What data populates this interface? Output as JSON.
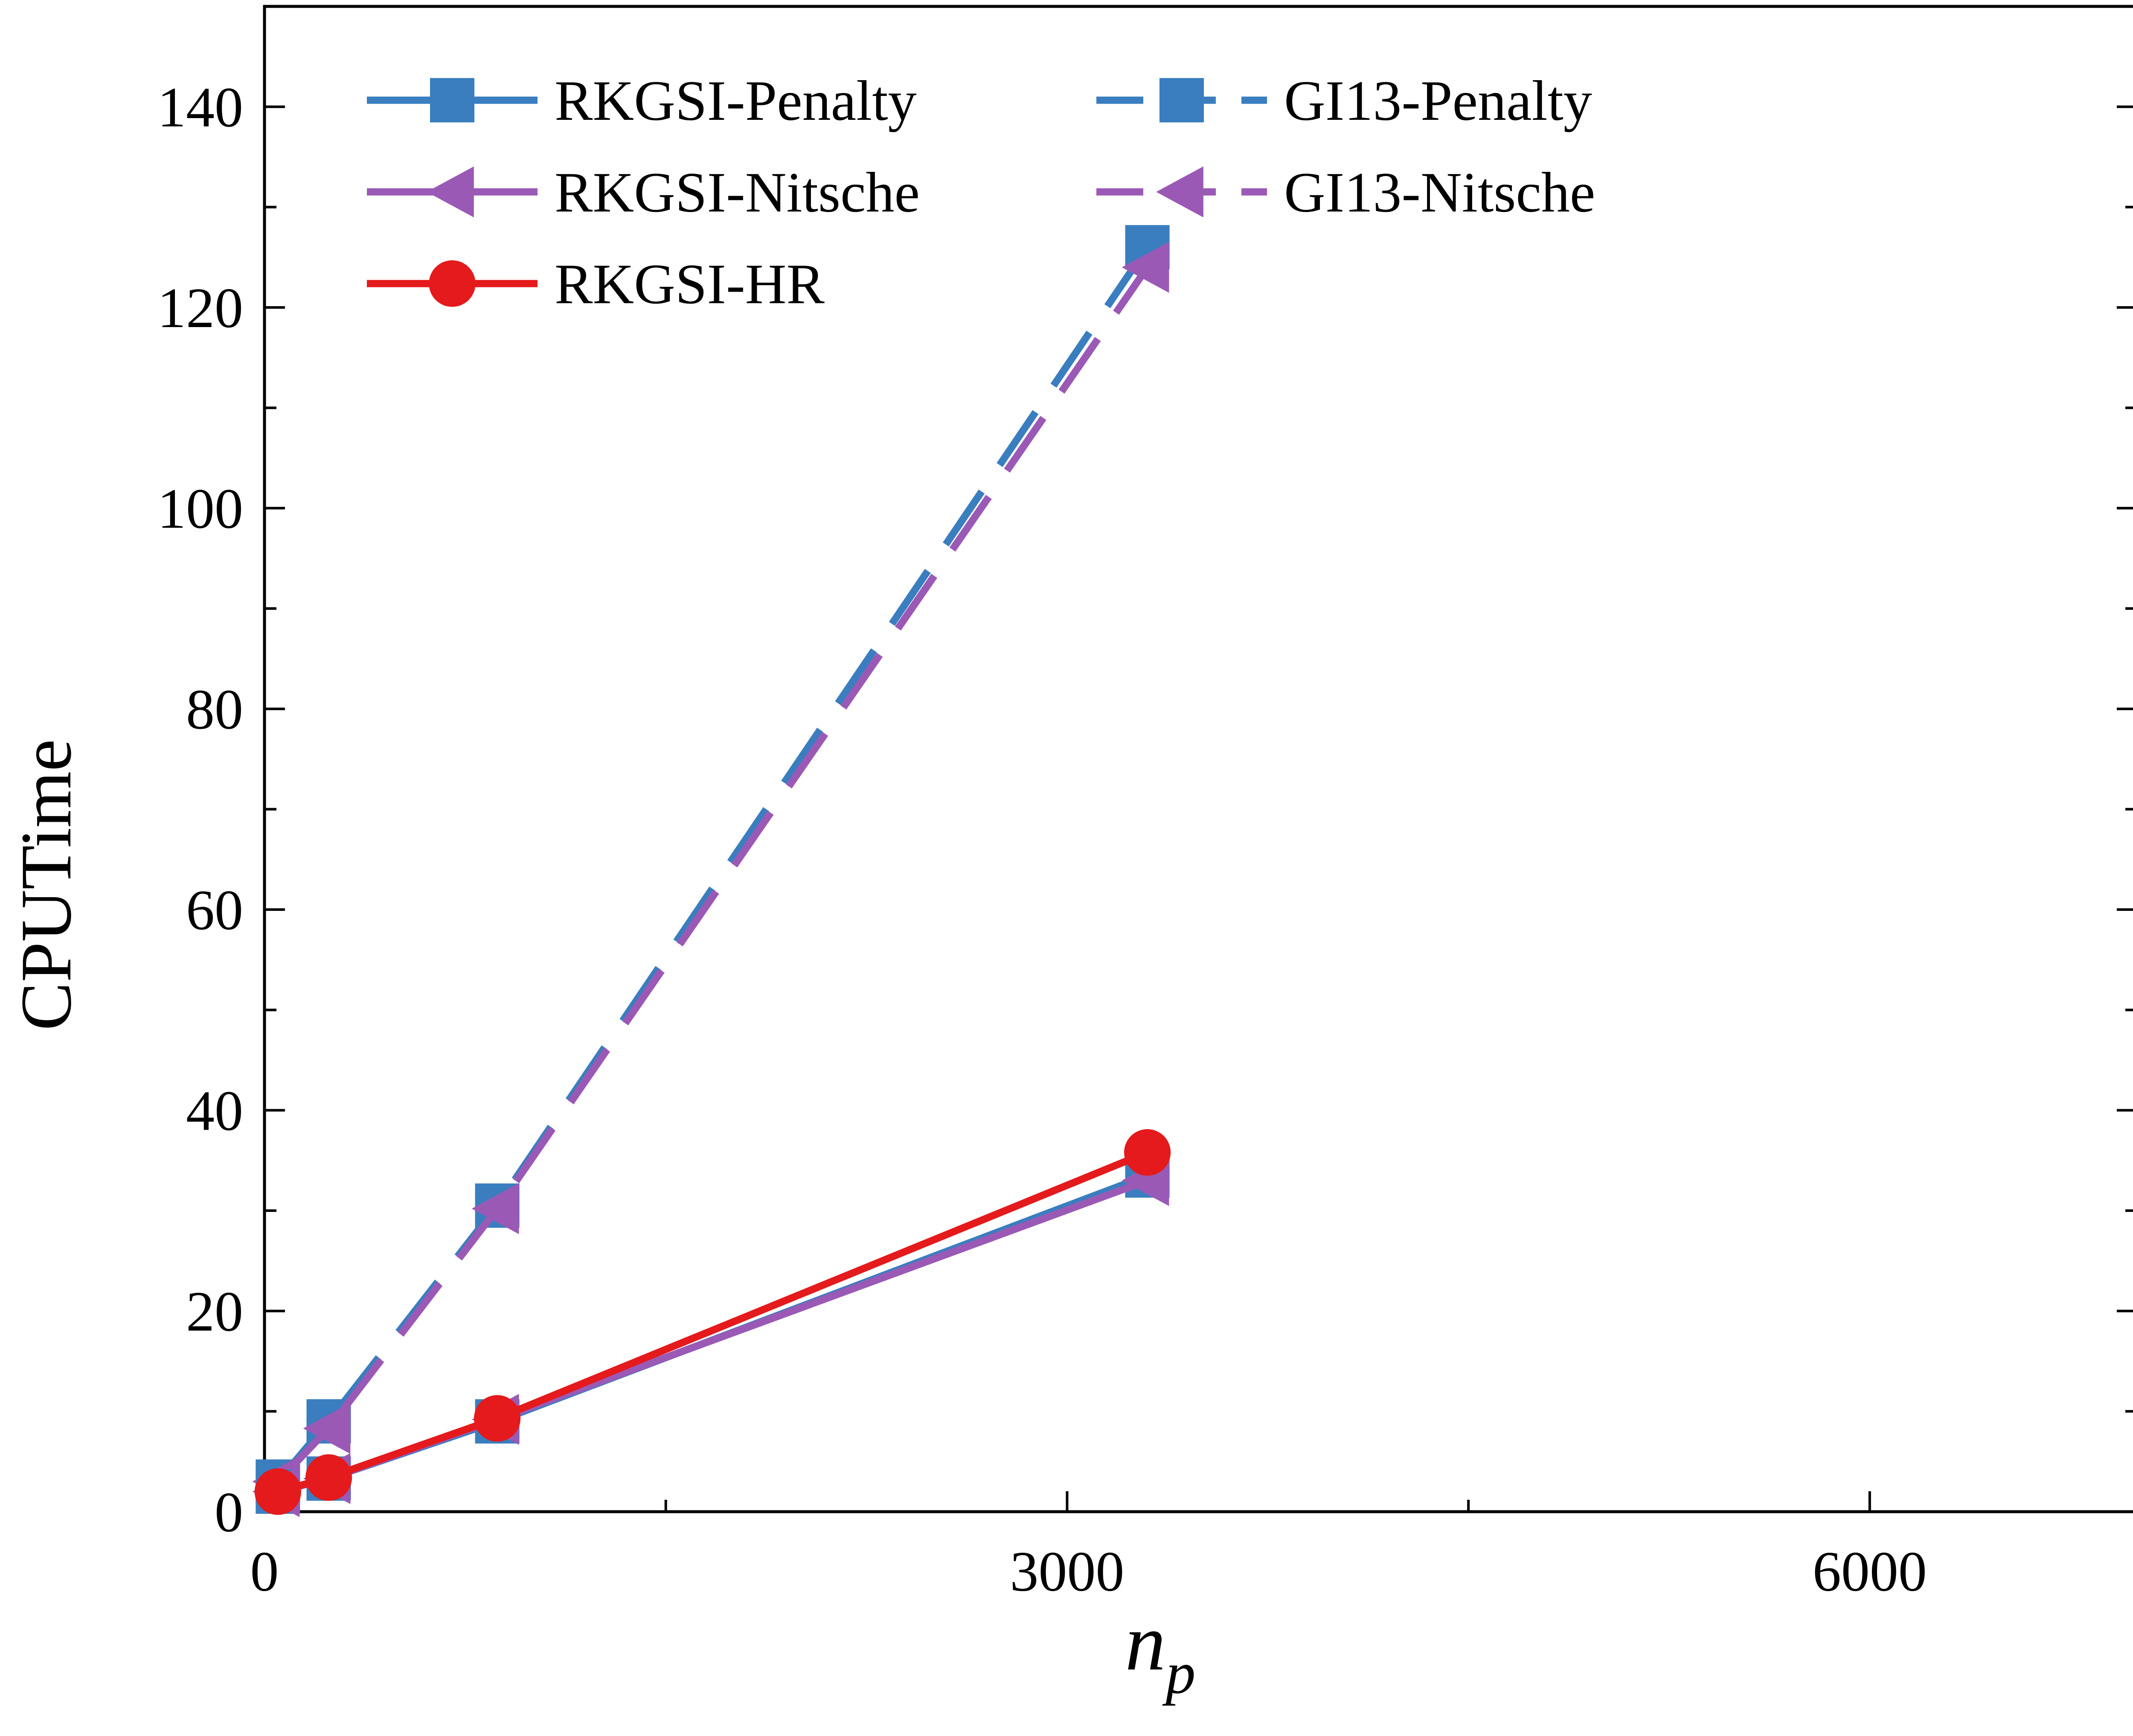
{
  "chart_data": {
    "type": "line",
    "ylabel": "CPUTime",
    "xlabel_main": "n",
    "xlabel_sub": "p",
    "xlim": [
      0,
      7000
    ],
    "ylim": [
      0,
      150
    ],
    "x_ticks": [
      0,
      3000,
      6000
    ],
    "y_ticks": [
      0,
      20,
      40,
      60,
      80,
      100,
      120,
      140
    ],
    "grid": false,
    "legend_position": "top-left",
    "series": [
      {
        "name": "RKGSI-Penalty",
        "color": "#3a7ebf",
        "dash": "solid",
        "marker": "square",
        "x": [
          50,
          240,
          870,
          3300
        ],
        "y": [
          2.0,
          3.3,
          9.0,
          33.5
        ]
      },
      {
        "name": "RKGSI-Nitsche",
        "color": "#9b59b6",
        "dash": "solid",
        "marker": "triangle-left",
        "x": [
          50,
          240,
          870,
          3300
        ],
        "y": [
          2.0,
          3.3,
          9.2,
          33.0
        ]
      },
      {
        "name": "RKGSI-HR",
        "color": "#e41a1c",
        "dash": "solid",
        "marker": "circle",
        "x": [
          50,
          240,
          870,
          3300
        ],
        "y": [
          2.0,
          3.4,
          9.3,
          35.8
        ]
      },
      {
        "name": "GI13-Penalty",
        "color": "#3a7ebf",
        "dash": "dashed",
        "marker": "square",
        "x": [
          50,
          240,
          870,
          3300
        ],
        "y": [
          3.0,
          9.0,
          30.5,
          126.0
        ]
      },
      {
        "name": "GI13-Nitsche",
        "color": "#9b59b6",
        "dash": "dashed",
        "marker": "triangle-left",
        "x": [
          50,
          240,
          870,
          3300
        ],
        "y": [
          3.0,
          8.3,
          30.2,
          124.0
        ]
      }
    ]
  }
}
